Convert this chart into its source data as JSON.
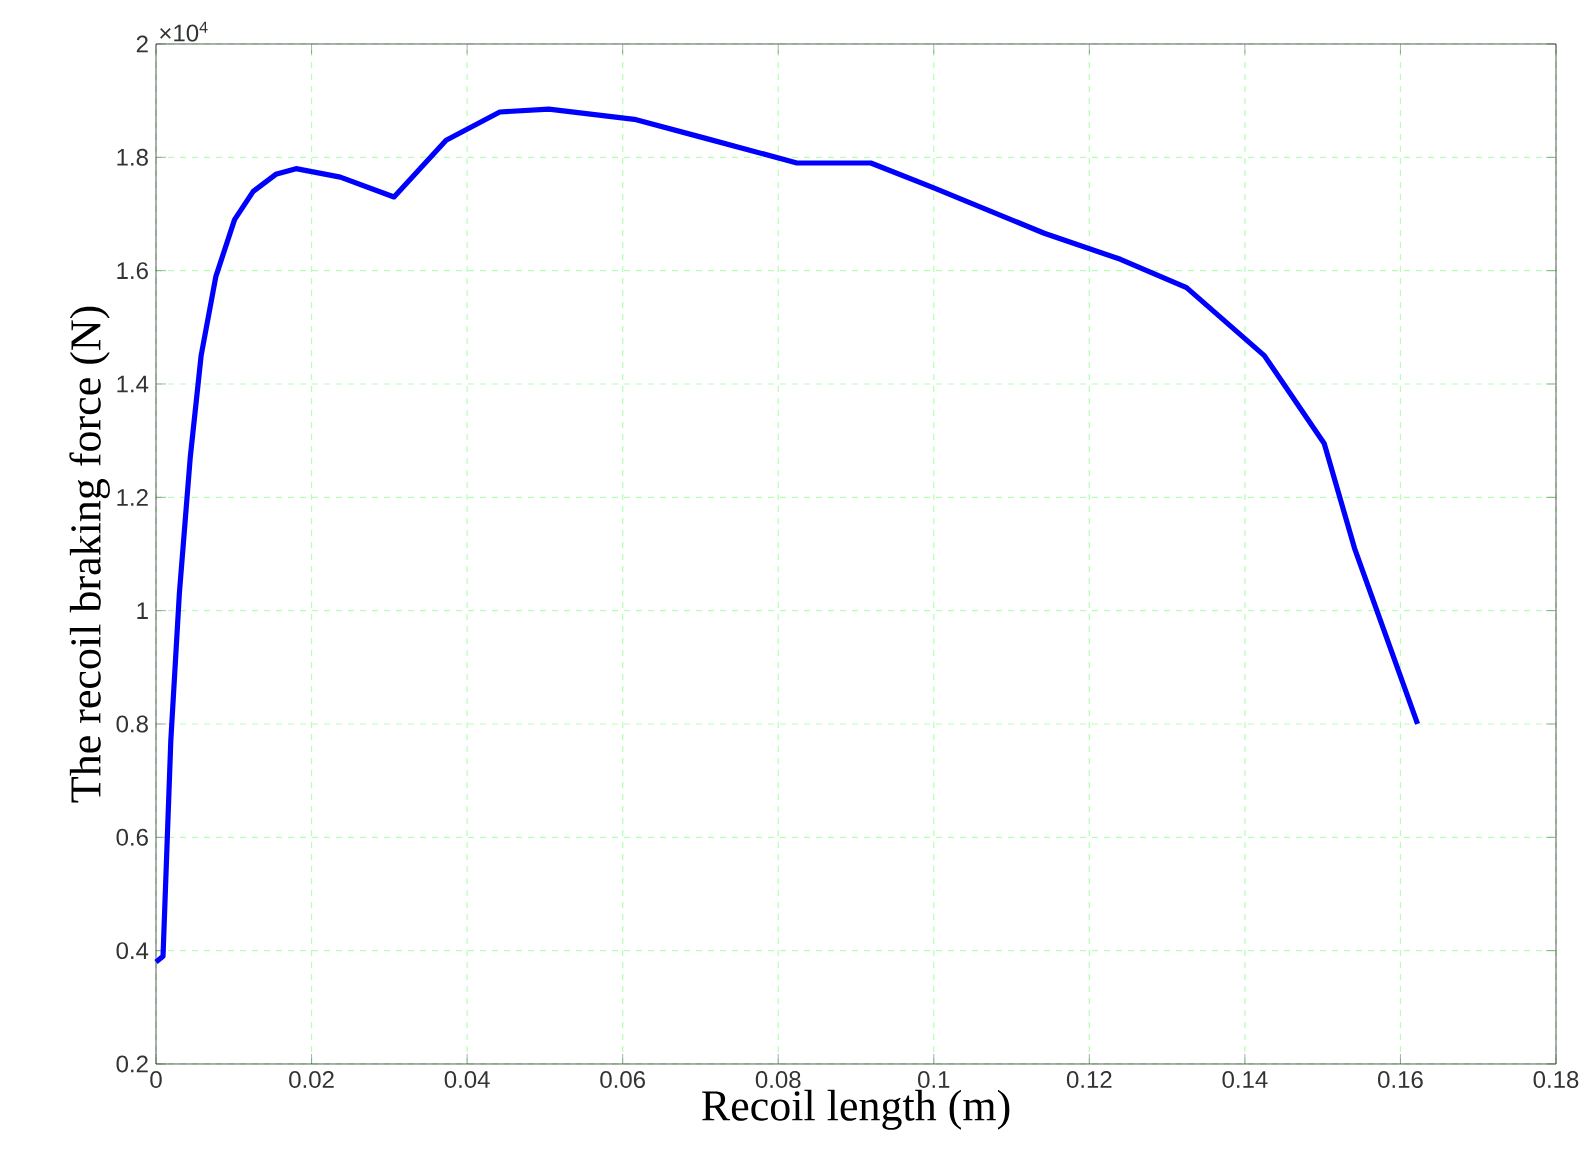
{
  "chart_data": {
    "type": "line",
    "xlabel": "Recoil length (m)",
    "ylabel": "The recoil braking force (N)",
    "annotations": [
      "×10$^{4}$"
    ],
    "x": [
      0,
      0.0009,
      0.0019,
      0.003,
      0.0044,
      0.0058,
      0.0077,
      0.0101,
      0.0125,
      0.0154,
      0.018,
      0.0237,
      0.0306,
      0.0373,
      0.0442,
      0.0505,
      0.0615,
      0.0708,
      0.0824,
      0.0919,
      0.1,
      0.1142,
      0.124,
      0.1325,
      0.1425,
      0.1502,
      0.1541,
      0.1622
    ],
    "series": [
      {
        "color": "#0000ff",
        "values": [
          0.38,
          0.39,
          0.77,
          1.03,
          1.27,
          1.45,
          1.59,
          1.69,
          1.74,
          1.77,
          1.78,
          1.765,
          1.73,
          1.83,
          1.88,
          1.885,
          1.867,
          1.833,
          1.79,
          1.79,
          1.746,
          1.666,
          1.62,
          1.57,
          1.45,
          1.295,
          1.11,
          0.8
        ]
      }
    ],
    "xlim": [
      0,
      0.18
    ],
    "ylim": [
      0.2,
      2
    ],
    "xticks": [
      0,
      0.02,
      0.04,
      0.06,
      0.08,
      0.1,
      0.12,
      0.14,
      0.16,
      0.18
    ],
    "yticks": [
      0.2,
      0.4,
      0.6,
      0.8,
      1,
      1.2,
      1.4,
      1.6,
      1.8,
      2
    ],
    "grid": true,
    "line_style": "solid",
    "marker": "none"
  }
}
